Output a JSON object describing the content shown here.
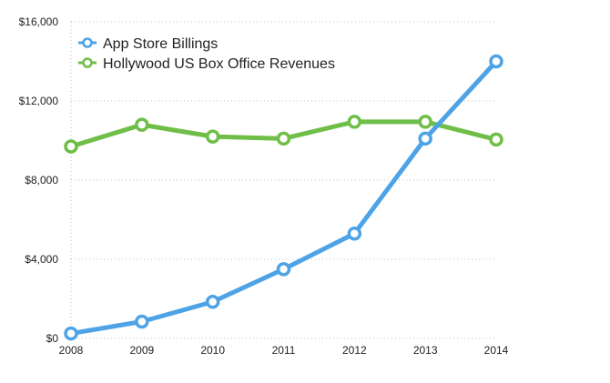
{
  "chart_data": {
    "type": "line",
    "title": "",
    "xlabel": "",
    "ylabel": "",
    "x": [
      "2008",
      "2009",
      "2010",
      "2011",
      "2012",
      "2013",
      "2014"
    ],
    "ylim": [
      0,
      16000
    ],
    "yticks": [
      0,
      4000,
      8000,
      12000,
      16000
    ],
    "ytick_labels": [
      "$0",
      "$4,000",
      "$8,000",
      "$12,000",
      "$16,000"
    ],
    "grid": "horizontal-dotted",
    "legend_position": "top-left",
    "series": [
      {
        "name": "App Store Billings",
        "color": "#4ea3e6",
        "values": [
          250,
          850,
          1850,
          3500,
          5300,
          10100,
          14000
        ]
      },
      {
        "name": "Hollywood US Box Office Revenues",
        "color": "#6fbe48",
        "values": [
          9700,
          10800,
          10200,
          10100,
          10950,
          10950,
          10050
        ]
      }
    ]
  }
}
